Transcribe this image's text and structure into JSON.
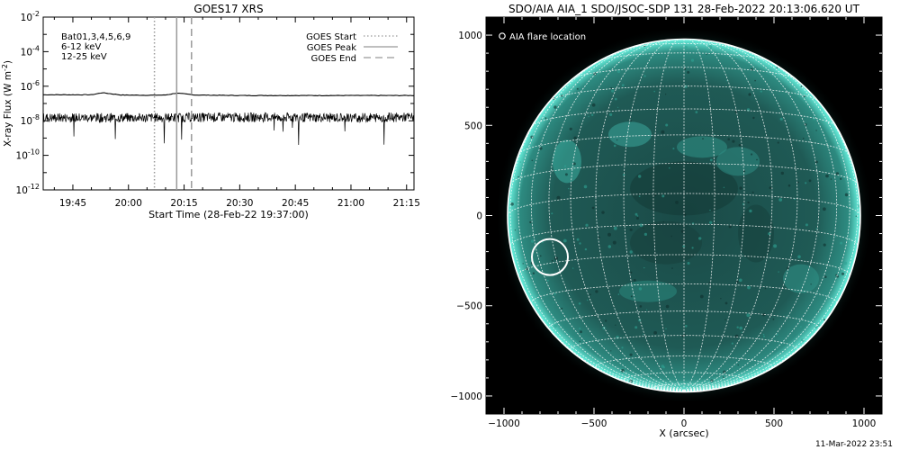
{
  "chart_data": [
    {
      "type": "line",
      "title": "GOES17 XRS",
      "xlabel": "Start Time (28-Feb-22 19:37:00)",
      "ylabel": "X-ray Flux (W m",
      "ylabel_sup": "-2",
      "ylabel_close": ")",
      "y_scale": "log",
      "xlim": [
        "19:37",
        "21:17"
      ],
      "ylim": [
        1e-12,
        0.01
      ],
      "x_ticks": [
        "19:45",
        "20:00",
        "20:15",
        "20:30",
        "20:45",
        "21:00",
        "21:15"
      ],
      "y_ticks": [
        {
          "base": "10",
          "exp": "-2",
          "value": 0.01
        },
        {
          "base": "10",
          "exp": "-4",
          "value": 0.0001
        },
        {
          "base": "10",
          "exp": "-6",
          "value": 1e-06
        },
        {
          "base": "10",
          "exp": "-8",
          "value": 1e-08
        },
        {
          "base": "10",
          "exp": "-10",
          "value": 1e-10
        },
        {
          "base": "10",
          "exp": "-12",
          "value": 1e-12
        }
      ],
      "channels_label": "Bat01,3,4,5,6,9",
      "series": [
        {
          "name": "6-12 keV",
          "color": "#e600e6",
          "x": [
            "19:37",
            "19:50",
            "19:53",
            "19:58",
            "20:05",
            "20:10",
            "20:13",
            "20:18",
            "20:30",
            "21:17"
          ],
          "y": [
            3.2e-07,
            3.2e-07,
            4.2e-07,
            3.1e-07,
            3e-07,
            3.1e-07,
            4e-07,
            3.1e-07,
            2.9e-07,
            2.9e-07
          ]
        },
        {
          "name": "12-25 keV",
          "color": "#00cc00",
          "x": [
            "19:37",
            "20:00",
            "20:30",
            "21:00",
            "21:17"
          ],
          "y": [
            1.5e-08,
            1.5e-08,
            1.6e-08,
            1.5e-08,
            1.6e-08
          ]
        }
      ],
      "event_lines": [
        {
          "name": "GOES Start",
          "style": "dotted",
          "x": "20:07"
        },
        {
          "name": "GOES Peak",
          "style": "solid",
          "x": "20:13"
        },
        {
          "name": "GOES End",
          "style": "dashed",
          "x": "20:17"
        }
      ],
      "legend": "top-right"
    },
    {
      "type": "image",
      "title": "SDO/AIA AIA_1 SDO/JSOC-SDP 131 28-Feb-2022 20:13:06.620 UT",
      "xlabel": "X (arcsec)",
      "ylabel": "",
      "xlim": [
        -1100,
        1100
      ],
      "ylim": [
        -1100,
        1100
      ],
      "x_ticks": [
        "−1000",
        "−500",
        "0",
        "500",
        "1000"
      ],
      "y_ticks": [
        "1000",
        "500",
        "0",
        "−500",
        "−1000"
      ],
      "solar_radius_arcsec": 980,
      "flare": {
        "label": "AIA flare location",
        "x": -745,
        "y": -230,
        "radius_arcsec": 100
      },
      "grid_color": "#ffffff",
      "disk_color": "#1e5a55",
      "limb_color": "#5ff0dd",
      "background_color": "#000000"
    }
  ],
  "footer": {
    "date": "11-Mar-2022 23:51"
  }
}
